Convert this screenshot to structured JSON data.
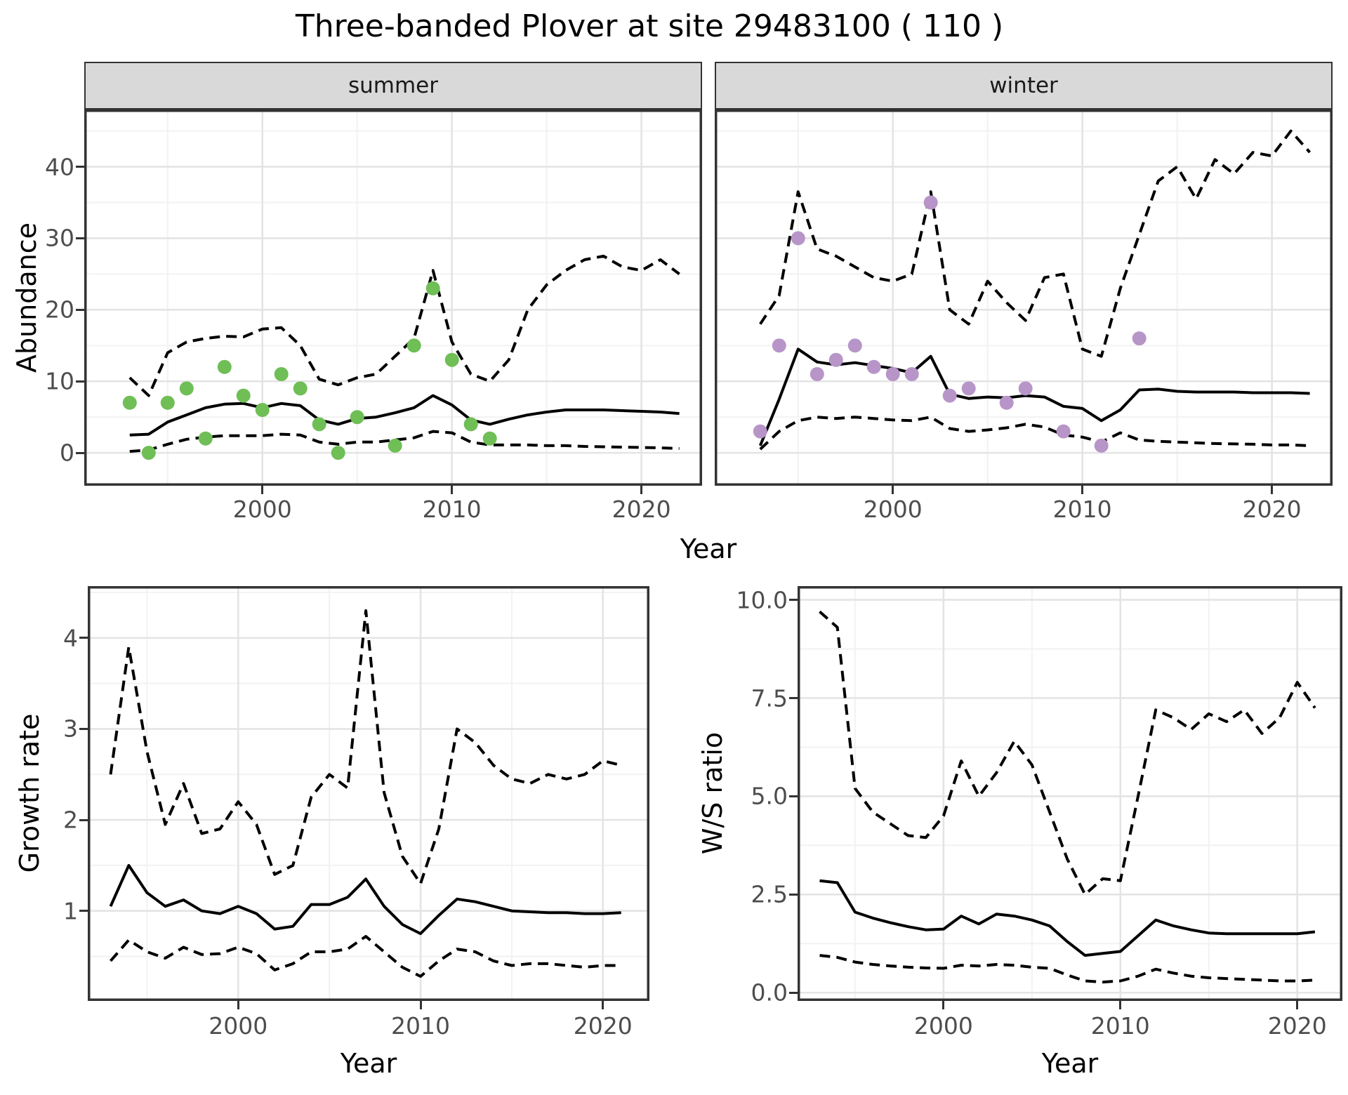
{
  "title": "Three-banded Plover at site 29483100 ( 110 )",
  "labels": {
    "abundance": "Abundance",
    "year": "Year",
    "growth_rate": "Growth rate",
    "ws_ratio": "W/S ratio"
  },
  "facets": {
    "summer": "summer",
    "winter": "winter"
  },
  "colors": {
    "summer_point": "#6FBE56",
    "winter_point": "#B795C8",
    "line": "#000000",
    "grid_major": "#E4E4E4",
    "grid_minor": "#F2F2F2",
    "panel_border": "#333333",
    "strip_fill": "#D9D9D9",
    "tick_text": "#4D4D4D"
  },
  "chart_data": [
    {
      "id": "abundance-summer",
      "type": "line",
      "facet": "summer",
      "title": "Three-banded Plover at site 29483100 ( 110 )",
      "xlabel": "Year",
      "ylabel": "Abundance",
      "xlim": [
        1990.6,
        2023.2
      ],
      "ylim": [
        -4.6,
        48
      ],
      "xticks": [
        2000,
        2010,
        2020
      ],
      "xticks_minor": [
        1995,
        2005,
        2015
      ],
      "yticks": [
        0,
        10,
        20,
        30,
        40
      ],
      "ytick_labels": [
        "0",
        "10",
        "20",
        "30",
        "40"
      ],
      "yticks_minor": [
        5,
        15,
        25,
        35,
        45
      ],
      "grid": true,
      "legend": "none",
      "x": [
        1993,
        1994,
        1995,
        1996,
        1997,
        1998,
        1999,
        2000,
        2001,
        2002,
        2003,
        2004,
        2005,
        2006,
        2007,
        2008,
        2009,
        2010,
        2011,
        2012,
        2013,
        2014,
        2015,
        2016,
        2017,
        2018,
        2019,
        2020,
        2021,
        2022
      ],
      "series": [
        {
          "name": "fit",
          "style": "solid",
          "values": [
            2.5,
            2.6,
            4.3,
            5.3,
            6.3,
            6.8,
            6.9,
            6.3,
            6.9,
            6.6,
            4.6,
            4.0,
            4.8,
            5.0,
            5.6,
            6.3,
            8.0,
            6.7,
            4.6,
            4.0,
            4.7,
            5.3,
            5.7,
            6.0,
            6.0,
            6.0,
            5.9,
            5.8,
            5.7,
            5.5
          ]
        },
        {
          "name": "upper_ci",
          "style": "dashed",
          "values": [
            10.5,
            8.0,
            14.0,
            15.5,
            16.0,
            16.3,
            16.2,
            17.3,
            17.5,
            15.0,
            10.3,
            9.5,
            10.5,
            11.0,
            13.5,
            16.0,
            25.5,
            15.5,
            11.0,
            10.0,
            13.0,
            20.0,
            23.5,
            25.5,
            27.0,
            27.5,
            26.0,
            25.5,
            27.0,
            25.0
          ]
        },
        {
          "name": "lower_ci",
          "style": "dashed",
          "values": [
            0.2,
            0.4,
            1.2,
            1.9,
            2.2,
            2.4,
            2.4,
            2.4,
            2.6,
            2.5,
            1.5,
            1.2,
            1.5,
            1.5,
            1.8,
            2.1,
            3.0,
            2.8,
            1.5,
            1.1,
            1.1,
            1.1,
            1.0,
            1.0,
            0.9,
            0.85,
            0.8,
            0.75,
            0.7,
            0.6
          ]
        }
      ],
      "points": {
        "name": "observed-counts-summer",
        "color": "#6FBE56",
        "x": [
          1993,
          1994,
          1995,
          1996,
          1997,
          1998,
          1999,
          2000,
          2001,
          2002,
          2003,
          2004,
          2005,
          2007,
          2008,
          2009,
          2010,
          2011,
          2012
        ],
        "y": [
          7,
          0,
          7,
          9,
          2,
          12,
          8,
          6,
          11,
          9,
          4,
          0,
          5,
          1,
          15,
          23,
          13,
          4,
          2
        ]
      }
    },
    {
      "id": "abundance-winter",
      "type": "line",
      "facet": "winter",
      "xlabel": "Year",
      "ylabel": "Abundance",
      "xlim": [
        1990.6,
        2023.2
      ],
      "ylim": [
        -4.6,
        48
      ],
      "xticks": [
        2000,
        2010,
        2020
      ],
      "xticks_minor": [
        1995,
        2005,
        2015
      ],
      "yticks": [
        0,
        10,
        20,
        30,
        40
      ],
      "ytick_labels": [
        "0",
        "10",
        "20",
        "30",
        "40"
      ],
      "yticks_minor": [
        5,
        15,
        25,
        35,
        45
      ],
      "grid": true,
      "legend": "none",
      "x": [
        1993,
        1994,
        1995,
        1996,
        1997,
        1998,
        1999,
        2000,
        2001,
        2002,
        2003,
        2004,
        2005,
        2006,
        2007,
        2008,
        2009,
        2010,
        2011,
        2012,
        2013,
        2014,
        2015,
        2016,
        2017,
        2018,
        2019,
        2020,
        2021,
        2022
      ],
      "series": [
        {
          "name": "fit",
          "style": "solid",
          "values": [
            1.0,
            7.5,
            14.5,
            12.7,
            12.3,
            12.6,
            12.2,
            11.8,
            11.2,
            13.5,
            8.2,
            7.6,
            7.8,
            7.7,
            8.0,
            7.8,
            6.5,
            6.2,
            4.5,
            6.0,
            8.8,
            8.9,
            8.6,
            8.5,
            8.5,
            8.5,
            8.4,
            8.4,
            8.4,
            8.3
          ]
        },
        {
          "name": "upper_ci",
          "style": "dashed",
          "values": [
            18.0,
            22.0,
            36.5,
            28.5,
            27.5,
            26.0,
            24.5,
            24.0,
            25.0,
            36.5,
            20.0,
            18.0,
            24.0,
            21.0,
            18.5,
            24.5,
            25.0,
            14.5,
            13.5,
            23.0,
            30.5,
            38.0,
            40.0,
            35.5,
            41.0,
            39.0,
            42.0,
            41.5,
            45.0,
            42.0
          ]
        },
        {
          "name": "lower_ci",
          "style": "dashed",
          "values": [
            0.5,
            3.0,
            4.5,
            5.0,
            4.8,
            5.0,
            4.8,
            4.6,
            4.5,
            5.0,
            3.4,
            3.0,
            3.2,
            3.5,
            4.0,
            3.6,
            2.5,
            2.2,
            1.5,
            2.8,
            1.8,
            1.6,
            1.5,
            1.4,
            1.3,
            1.25,
            1.2,
            1.1,
            1.1,
            1.0
          ]
        }
      ],
      "points": {
        "name": "observed-counts-winter",
        "color": "#B795C8",
        "x": [
          1993,
          1994,
          1995,
          1996,
          1997,
          1998,
          1999,
          2000,
          2001,
          2002,
          2003,
          2004,
          2006,
          2007,
          2009,
          2011,
          2013
        ],
        "y": [
          3,
          15,
          30,
          11,
          13,
          15,
          12,
          11,
          11,
          35,
          8,
          9,
          7,
          9,
          3,
          1,
          16
        ]
      }
    },
    {
      "id": "growth-rate",
      "type": "line",
      "xlabel": "Year",
      "ylabel": "Growth rate",
      "xlim": [
        1991.75,
        2022.55
      ],
      "ylim": [
        0.01,
        4.57
      ],
      "xticks": [
        2000,
        2010,
        2020
      ],
      "xticks_minor": [
        1995,
        2005,
        2015
      ],
      "yticks": [
        1,
        2,
        3,
        4
      ],
      "ytick_labels": [
        "1",
        "2",
        "3",
        "4"
      ],
      "yticks_minor": [
        0.5,
        1.5,
        2.5,
        3.5,
        4.5
      ],
      "grid": true,
      "legend": "none",
      "x": [
        1993,
        1994,
        1995,
        1996,
        1997,
        1998,
        1999,
        2000,
        2001,
        2002,
        2003,
        2004,
        2005,
        2006,
        2007,
        2008,
        2009,
        2010,
        2011,
        2012,
        2013,
        2014,
        2015,
        2016,
        2017,
        2018,
        2019,
        2020,
        2021
      ],
      "series": [
        {
          "name": "fit",
          "style": "solid",
          "values": [
            1.05,
            1.5,
            1.2,
            1.05,
            1.12,
            1.0,
            0.97,
            1.05,
            0.97,
            0.8,
            0.83,
            1.07,
            1.07,
            1.15,
            1.35,
            1.05,
            0.85,
            0.75,
            0.95,
            1.13,
            1.1,
            1.05,
            1.0,
            0.99,
            0.98,
            0.98,
            0.97,
            0.97,
            0.98
          ]
        },
        {
          "name": "upper_ci",
          "style": "dashed",
          "values": [
            2.5,
            3.9,
            2.75,
            1.95,
            2.4,
            1.85,
            1.9,
            2.2,
            1.95,
            1.4,
            1.5,
            2.25,
            2.5,
            2.35,
            4.3,
            2.3,
            1.6,
            1.3,
            1.9,
            3.0,
            2.85,
            2.6,
            2.45,
            2.4,
            2.5,
            2.45,
            2.5,
            2.65,
            2.6
          ]
        },
        {
          "name": "lower_ci",
          "style": "dashed",
          "values": [
            0.45,
            0.68,
            0.55,
            0.48,
            0.6,
            0.52,
            0.53,
            0.6,
            0.53,
            0.35,
            0.42,
            0.55,
            0.55,
            0.58,
            0.72,
            0.55,
            0.38,
            0.28,
            0.45,
            0.58,
            0.55,
            0.45,
            0.4,
            0.42,
            0.42,
            0.4,
            0.38,
            0.4,
            0.4
          ]
        }
      ]
    },
    {
      "id": "ws-ratio",
      "type": "line",
      "xlabel": "Year",
      "ylabel": "W/S ratio",
      "xlim": [
        1991.75,
        2022.55
      ],
      "ylim": [
        -0.21,
        10.35
      ],
      "xticks": [
        2000,
        2010,
        2020
      ],
      "xticks_minor": [
        1995,
        2005,
        2015
      ],
      "yticks": [
        0.0,
        2.5,
        5.0,
        7.5,
        10.0
      ],
      "ytick_labels": [
        "0.0",
        "2.5",
        "5.0",
        "7.5",
        "10.0"
      ],
      "yticks_minor": [
        1.25,
        3.75,
        6.25,
        8.75
      ],
      "grid": true,
      "legend": "none",
      "x": [
        1993,
        1994,
        1995,
        1996,
        1997,
        1998,
        1999,
        2000,
        2001,
        2002,
        2003,
        2004,
        2005,
        2006,
        2007,
        2008,
        2009,
        2010,
        2011,
        2012,
        2013,
        2014,
        2015,
        2016,
        2017,
        2018,
        2019,
        2020,
        2021
      ],
      "series": [
        {
          "name": "fit",
          "style": "solid",
          "values": [
            2.85,
            2.8,
            2.05,
            1.9,
            1.78,
            1.68,
            1.6,
            1.62,
            1.95,
            1.75,
            2.0,
            1.95,
            1.85,
            1.7,
            1.3,
            0.95,
            1.0,
            1.05,
            1.45,
            1.85,
            1.7,
            1.6,
            1.52,
            1.5,
            1.5,
            1.5,
            1.5,
            1.5,
            1.55
          ]
        },
        {
          "name": "upper_ci",
          "style": "dashed",
          "values": [
            9.7,
            9.3,
            5.2,
            4.6,
            4.3,
            4.0,
            3.95,
            4.5,
            5.9,
            5.0,
            5.6,
            6.4,
            5.8,
            4.6,
            3.4,
            2.5,
            2.9,
            2.85,
            5.0,
            7.2,
            7.0,
            6.7,
            7.1,
            6.9,
            7.2,
            6.6,
            7.0,
            7.9,
            7.25
          ]
        },
        {
          "name": "lower_ci",
          "style": "dashed",
          "values": [
            0.95,
            0.9,
            0.78,
            0.72,
            0.68,
            0.65,
            0.63,
            0.62,
            0.7,
            0.68,
            0.72,
            0.7,
            0.65,
            0.62,
            0.45,
            0.3,
            0.27,
            0.3,
            0.42,
            0.6,
            0.5,
            0.42,
            0.38,
            0.36,
            0.34,
            0.32,
            0.3,
            0.3,
            0.32
          ]
        }
      ]
    }
  ]
}
